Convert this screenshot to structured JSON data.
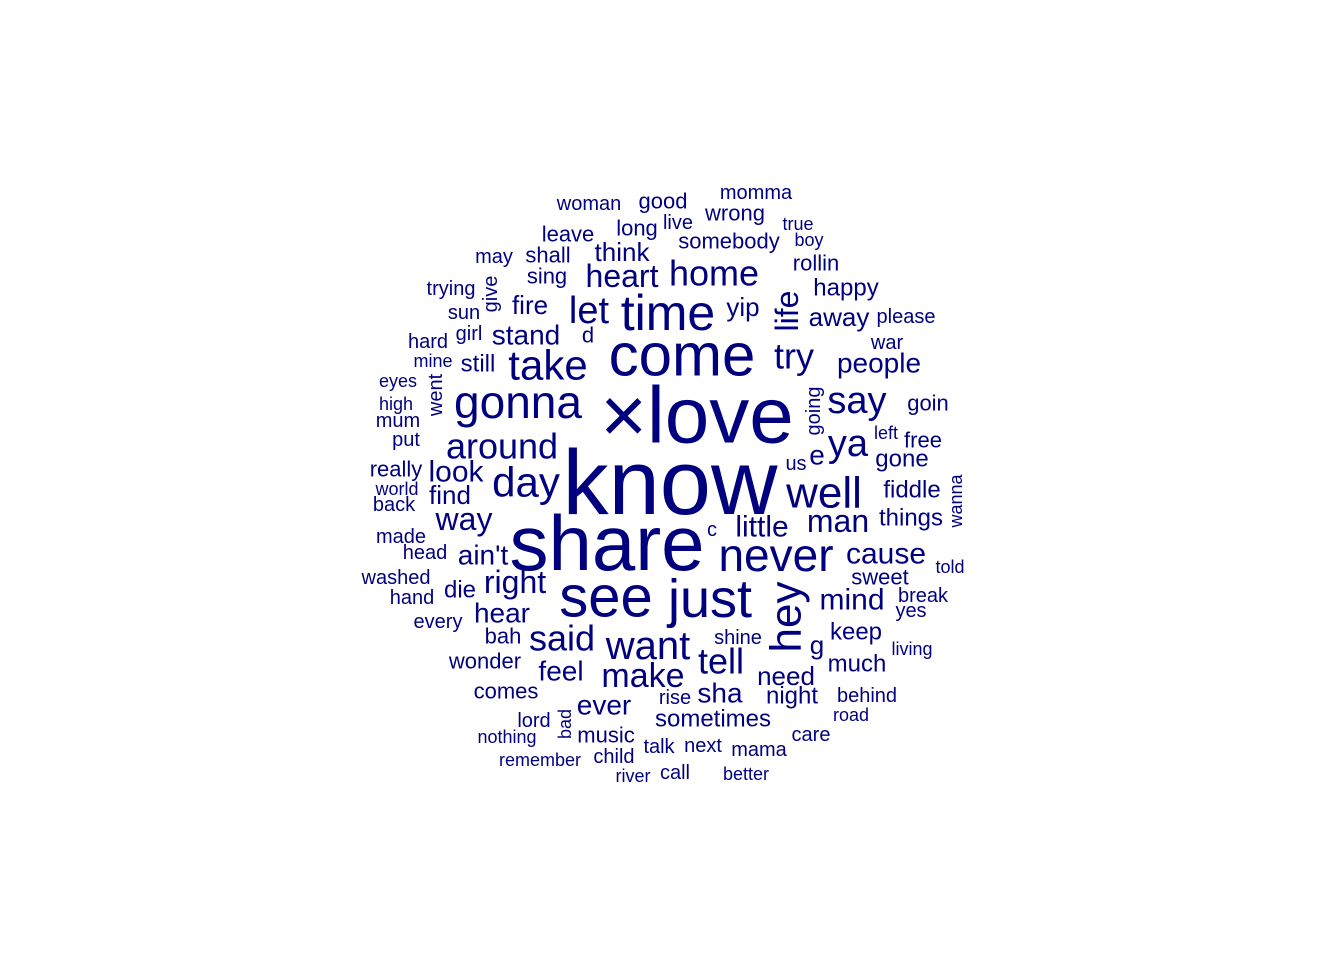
{
  "word_cloud": {
    "color": "#00007F",
    "words": [
      {
        "text": "know",
        "rotated": false
      },
      {
        "text": "×love",
        "rotated": false
      },
      {
        "text": "share",
        "rotated": false
      },
      {
        "text": "come",
        "rotated": false
      },
      {
        "text": "see",
        "rotated": false
      },
      {
        "text": "just",
        "rotated": false
      },
      {
        "text": "time",
        "rotated": false
      },
      {
        "text": "never",
        "rotated": false
      },
      {
        "text": "gonna",
        "rotated": false
      },
      {
        "text": "well",
        "rotated": false
      },
      {
        "text": "take",
        "rotated": false
      },
      {
        "text": "hey",
        "rotated": true
      },
      {
        "text": "want",
        "rotated": false
      },
      {
        "text": "day",
        "rotated": false
      },
      {
        "text": "say",
        "rotated": false
      },
      {
        "text": "ya",
        "rotated": false
      },
      {
        "text": "around",
        "rotated": false
      },
      {
        "text": "tell",
        "rotated": false
      },
      {
        "text": "make",
        "rotated": false
      },
      {
        "text": "said",
        "rotated": false
      },
      {
        "text": "let",
        "rotated": false
      },
      {
        "text": "life",
        "rotated": true
      },
      {
        "text": "home",
        "rotated": false
      },
      {
        "text": "heart",
        "rotated": false
      },
      {
        "text": "try",
        "rotated": false
      },
      {
        "text": "right",
        "rotated": false
      },
      {
        "text": "way",
        "rotated": false
      },
      {
        "text": "man",
        "rotated": false
      },
      {
        "text": "mind",
        "rotated": false
      },
      {
        "text": "look",
        "rotated": false
      },
      {
        "text": "little",
        "rotated": false
      },
      {
        "text": "cause",
        "rotated": false
      },
      {
        "text": "people",
        "rotated": false
      },
      {
        "text": "hear",
        "rotated": false
      },
      {
        "text": "stand",
        "rotated": false
      },
      {
        "text": "ain't",
        "rotated": false
      },
      {
        "text": "feel",
        "rotated": false
      },
      {
        "text": "need",
        "rotated": false
      },
      {
        "text": "sha",
        "rotated": false
      },
      {
        "text": "ever",
        "rotated": false
      },
      {
        "text": "fire",
        "rotated": false
      },
      {
        "text": "find",
        "rotated": false
      },
      {
        "text": "think",
        "rotated": false
      },
      {
        "text": "fiddle",
        "rotated": false
      },
      {
        "text": "things",
        "rotated": false
      },
      {
        "text": "away",
        "rotated": false
      },
      {
        "text": "yip",
        "rotated": false
      },
      {
        "text": "night",
        "rotated": false
      },
      {
        "text": "keep",
        "rotated": false
      },
      {
        "text": "much",
        "rotated": false
      },
      {
        "text": "sometimes",
        "rotated": false
      },
      {
        "text": "somebody",
        "rotated": false
      },
      {
        "text": "e",
        "rotated": false
      },
      {
        "text": "g",
        "rotated": false
      },
      {
        "text": "long",
        "rotated": false
      },
      {
        "text": "good",
        "rotated": false
      },
      {
        "text": "wrong",
        "rotated": false
      },
      {
        "text": "happy",
        "rotated": false
      },
      {
        "text": "rollin",
        "rotated": false
      },
      {
        "text": "gone",
        "rotated": false
      },
      {
        "text": "goin",
        "rotated": false
      },
      {
        "text": "sweet",
        "rotated": false
      },
      {
        "text": "still",
        "rotated": false
      },
      {
        "text": "shall",
        "rotated": false
      },
      {
        "text": "sing",
        "rotated": false
      },
      {
        "text": "leave",
        "rotated": false
      },
      {
        "text": "die",
        "rotated": false
      },
      {
        "text": "bah",
        "rotated": false
      },
      {
        "text": "wonder",
        "rotated": false
      },
      {
        "text": "comes",
        "rotated": false
      },
      {
        "text": "music",
        "rotated": false
      },
      {
        "text": "woman",
        "rotated": false
      },
      {
        "text": "going",
        "rotated": true
      },
      {
        "text": "free",
        "rotated": false
      },
      {
        "text": "really",
        "rotated": false
      },
      {
        "text": "went",
        "rotated": true
      },
      {
        "text": "girl",
        "rotated": false
      },
      {
        "text": "give",
        "rotated": true
      },
      {
        "text": "live",
        "rotated": false
      },
      {
        "text": "shine",
        "rotated": false
      },
      {
        "text": "talk",
        "rotated": false
      },
      {
        "text": "next",
        "rotated": false
      },
      {
        "text": "mama",
        "rotated": false
      },
      {
        "text": "care",
        "rotated": false
      },
      {
        "text": "behind",
        "rotated": false
      },
      {
        "text": "momma",
        "rotated": false
      },
      {
        "text": "please",
        "rotated": false
      },
      {
        "text": "war",
        "rotated": false
      },
      {
        "text": "us",
        "rotated": false
      },
      {
        "text": "c",
        "rotated": false
      },
      {
        "text": "d",
        "rotated": false
      },
      {
        "text": "washed",
        "rotated": false
      },
      {
        "text": "every",
        "rotated": false
      },
      {
        "text": "hand",
        "rotated": false
      },
      {
        "text": "head",
        "rotated": false
      },
      {
        "text": "made",
        "rotated": false
      },
      {
        "text": "back",
        "rotated": false
      },
      {
        "text": "world",
        "rotated": false
      },
      {
        "text": "put",
        "rotated": false
      },
      {
        "text": "mum",
        "rotated": false
      },
      {
        "text": "high",
        "rotated": false
      },
      {
        "text": "eyes",
        "rotated": false
      },
      {
        "text": "mine",
        "rotated": false
      },
      {
        "text": "hard",
        "rotated": false
      },
      {
        "text": "sun",
        "rotated": false
      },
      {
        "text": "trying",
        "rotated": false
      },
      {
        "text": "may",
        "rotated": false
      },
      {
        "text": "true",
        "rotated": false
      },
      {
        "text": "boy",
        "rotated": false
      },
      {
        "text": "left",
        "rotated": false
      },
      {
        "text": "wanna",
        "rotated": true
      },
      {
        "text": "told",
        "rotated": false
      },
      {
        "text": "break",
        "rotated": false
      },
      {
        "text": "yes",
        "rotated": false
      },
      {
        "text": "living",
        "rotated": false
      },
      {
        "text": "road",
        "rotated": false
      },
      {
        "text": "rise",
        "rotated": false
      },
      {
        "text": "lord",
        "rotated": false
      },
      {
        "text": "bad",
        "rotated": true
      },
      {
        "text": "nothing",
        "rotated": false
      },
      {
        "text": "remember",
        "rotated": false
      },
      {
        "text": "child",
        "rotated": false
      },
      {
        "text": "river",
        "rotated": false
      },
      {
        "text": "call",
        "rotated": false
      },
      {
        "text": "better",
        "rotated": false
      }
    ]
  }
}
